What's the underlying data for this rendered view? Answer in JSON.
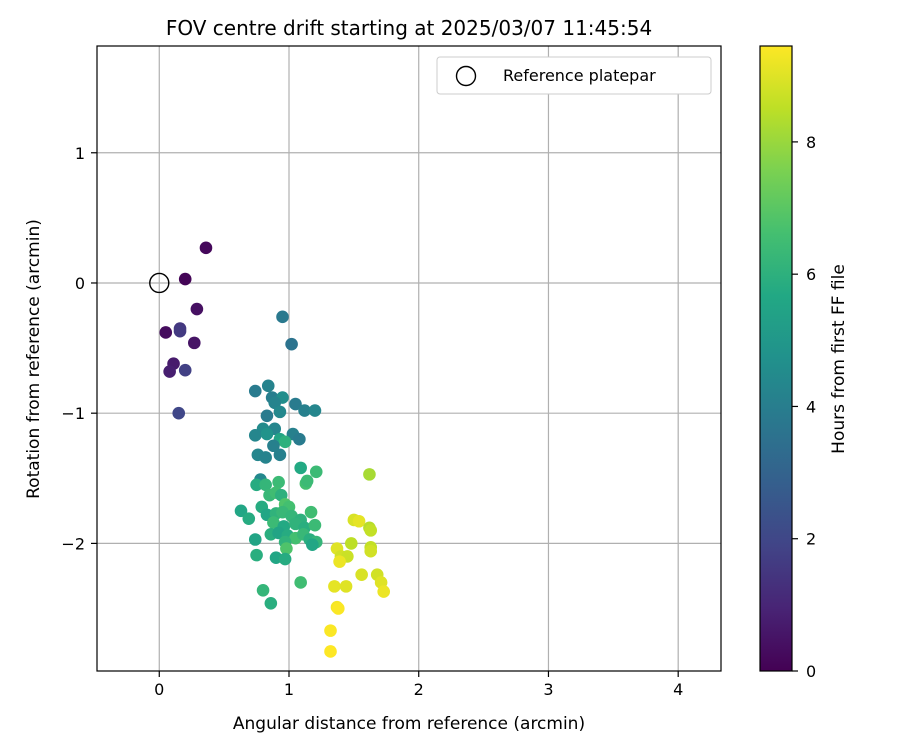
{
  "chart_data": {
    "type": "scatter",
    "title": "FOV centre drift starting at 2025/03/07 11:45:54",
    "xlabel": "Angular distance from reference (arcmin)",
    "ylabel": "Rotation from reference (arcmin)",
    "xlim": [
      -0.48,
      4.33
    ],
    "ylim": [
      -2.98,
      1.82
    ],
    "xticks": [
      0,
      1,
      2,
      3,
      4
    ],
    "yticks": [
      -2,
      -1,
      0,
      1
    ],
    "grid": true,
    "legend": {
      "placement": "upper right",
      "entries": [
        "Reference platepar"
      ]
    },
    "reference_point": {
      "x": 0,
      "y": 0,
      "label": "Reference platepar"
    },
    "colorbar": {
      "label": "Hours from first FF file",
      "range": [
        0,
        9.45
      ],
      "ticks": [
        0,
        2,
        4,
        6,
        8
      ],
      "colormap": "viridis"
    },
    "points": [
      {
        "x": 0.36,
        "y": 0.27,
        "h": 0.2
      },
      {
        "x": 0.2,
        "y": 0.03,
        "h": 0.1
      },
      {
        "x": 0.29,
        "y": -0.2,
        "h": 0.4
      },
      {
        "x": 0.05,
        "y": -0.38,
        "h": 0.3
      },
      {
        "x": 0.16,
        "y": -0.35,
        "h": 1.5
      },
      {
        "x": 0.16,
        "y": -0.37,
        "h": 1.6
      },
      {
        "x": 0.27,
        "y": -0.46,
        "h": 0.5
      },
      {
        "x": 0.11,
        "y": -0.62,
        "h": 0.7
      },
      {
        "x": 0.08,
        "y": -0.68,
        "h": 0.8
      },
      {
        "x": 0.2,
        "y": -0.67,
        "h": 1.8
      },
      {
        "x": 0.15,
        "y": -1.0,
        "h": 2.0
      },
      {
        "x": 0.95,
        "y": -0.26,
        "h": 3.8
      },
      {
        "x": 1.02,
        "y": -0.47,
        "h": 3.6
      },
      {
        "x": 0.74,
        "y": -0.83,
        "h": 3.9
      },
      {
        "x": 0.84,
        "y": -0.79,
        "h": 4.2
      },
      {
        "x": 0.87,
        "y": -0.88,
        "h": 4.0
      },
      {
        "x": 0.95,
        "y": -0.88,
        "h": 4.6
      },
      {
        "x": 0.89,
        "y": -0.92,
        "h": 4.2
      },
      {
        "x": 0.93,
        "y": -0.99,
        "h": 4.4
      },
      {
        "x": 0.83,
        "y": -1.02,
        "h": 3.9
      },
      {
        "x": 1.05,
        "y": -0.93,
        "h": 3.9
      },
      {
        "x": 1.12,
        "y": -0.98,
        "h": 4.1
      },
      {
        "x": 1.2,
        "y": -0.98,
        "h": 4.3
      },
      {
        "x": 0.8,
        "y": -1.12,
        "h": 4.5
      },
      {
        "x": 0.89,
        "y": -1.12,
        "h": 4.3
      },
      {
        "x": 0.74,
        "y": -1.17,
        "h": 4.3
      },
      {
        "x": 0.83,
        "y": -1.16,
        "h": 4.8
      },
      {
        "x": 1.03,
        "y": -1.16,
        "h": 4.1
      },
      {
        "x": 0.93,
        "y": -1.2,
        "h": 5.5
      },
      {
        "x": 0.97,
        "y": -1.22,
        "h": 6.0
      },
      {
        "x": 1.08,
        "y": -1.2,
        "h": 3.9
      },
      {
        "x": 0.88,
        "y": -1.25,
        "h": 4.1
      },
      {
        "x": 0.76,
        "y": -1.32,
        "h": 4.3
      },
      {
        "x": 0.82,
        "y": -1.34,
        "h": 4.2
      },
      {
        "x": 0.93,
        "y": -1.32,
        "h": 4.1
      },
      {
        "x": 1.09,
        "y": -1.42,
        "h": 5.7
      },
      {
        "x": 1.21,
        "y": -1.45,
        "h": 6.4
      },
      {
        "x": 0.78,
        "y": -1.51,
        "h": 4.4
      },
      {
        "x": 0.75,
        "y": -1.55,
        "h": 5.8
      },
      {
        "x": 0.82,
        "y": -1.55,
        "h": 6.2
      },
      {
        "x": 0.92,
        "y": -1.53,
        "h": 6.4
      },
      {
        "x": 1.13,
        "y": -1.54,
        "h": 6.6
      },
      {
        "x": 1.14,
        "y": -1.52,
        "h": 6.4
      },
      {
        "x": 0.85,
        "y": -1.63,
        "h": 6.3
      },
      {
        "x": 0.9,
        "y": -1.61,
        "h": 6.5
      },
      {
        "x": 0.94,
        "y": -1.63,
        "h": 6.0
      },
      {
        "x": 0.97,
        "y": -1.7,
        "h": 6.8
      },
      {
        "x": 1.0,
        "y": -1.72,
        "h": 6.6
      },
      {
        "x": 0.79,
        "y": -1.72,
        "h": 5.8
      },
      {
        "x": 0.83,
        "y": -1.78,
        "h": 5.6
      },
      {
        "x": 0.9,
        "y": -1.77,
        "h": 6.1
      },
      {
        "x": 0.95,
        "y": -1.76,
        "h": 6.3
      },
      {
        "x": 1.02,
        "y": -1.79,
        "h": 6.2
      },
      {
        "x": 1.09,
        "y": -1.82,
        "h": 6.0
      },
      {
        "x": 1.17,
        "y": -1.76,
        "h": 6.5
      },
      {
        "x": 0.63,
        "y": -1.75,
        "h": 5.6
      },
      {
        "x": 0.69,
        "y": -1.81,
        "h": 5.8
      },
      {
        "x": 0.88,
        "y": -1.84,
        "h": 6.4
      },
      {
        "x": 0.96,
        "y": -1.87,
        "h": 5.7
      },
      {
        "x": 1.05,
        "y": -1.85,
        "h": 6.1
      },
      {
        "x": 1.12,
        "y": -1.88,
        "h": 5.9
      },
      {
        "x": 1.2,
        "y": -1.86,
        "h": 6.4
      },
      {
        "x": 0.86,
        "y": -1.93,
        "h": 5.9
      },
      {
        "x": 0.92,
        "y": -1.92,
        "h": 5.5
      },
      {
        "x": 0.99,
        "y": -1.94,
        "h": 5.8
      },
      {
        "x": 1.05,
        "y": -1.96,
        "h": 6.6
      },
      {
        "x": 1.11,
        "y": -1.93,
        "h": 6.3
      },
      {
        "x": 1.16,
        "y": -1.97,
        "h": 5.9
      },
      {
        "x": 1.21,
        "y": -1.99,
        "h": 6.2
      },
      {
        "x": 0.74,
        "y": -1.97,
        "h": 5.5
      },
      {
        "x": 0.97,
        "y": -1.99,
        "h": 6.1
      },
      {
        "x": 1.18,
        "y": -2.01,
        "h": 5.6
      },
      {
        "x": 0.98,
        "y": -2.04,
        "h": 6.8
      },
      {
        "x": 0.75,
        "y": -2.09,
        "h": 5.9
      },
      {
        "x": 0.9,
        "y": -2.11,
        "h": 5.6
      },
      {
        "x": 0.97,
        "y": -2.12,
        "h": 5.8
      },
      {
        "x": 1.09,
        "y": -2.3,
        "h": 6.5
      },
      {
        "x": 0.8,
        "y": -2.36,
        "h": 6.2
      },
      {
        "x": 0.86,
        "y": -2.46,
        "h": 5.9
      },
      {
        "x": 1.62,
        "y": -1.47,
        "h": 8.2
      },
      {
        "x": 1.5,
        "y": -1.82,
        "h": 8.9
      },
      {
        "x": 1.54,
        "y": -1.83,
        "h": 9.1
      },
      {
        "x": 1.62,
        "y": -1.88,
        "h": 8.4
      },
      {
        "x": 1.63,
        "y": -1.9,
        "h": 8.6
      },
      {
        "x": 1.48,
        "y": -2.0,
        "h": 8.5
      },
      {
        "x": 1.37,
        "y": -2.04,
        "h": 9.0
      },
      {
        "x": 1.4,
        "y": -2.1,
        "h": 8.8
      },
      {
        "x": 1.45,
        "y": -2.1,
        "h": 8.7
      },
      {
        "x": 1.63,
        "y": -2.03,
        "h": 8.6
      },
      {
        "x": 1.63,
        "y": -2.06,
        "h": 8.8
      },
      {
        "x": 1.39,
        "y": -2.14,
        "h": 9.2
      },
      {
        "x": 1.56,
        "y": -2.24,
        "h": 8.9
      },
      {
        "x": 1.68,
        "y": -2.24,
        "h": 8.8
      },
      {
        "x": 1.71,
        "y": -2.3,
        "h": 9.0
      },
      {
        "x": 1.73,
        "y": -2.37,
        "h": 9.2
      },
      {
        "x": 1.35,
        "y": -2.33,
        "h": 9.1
      },
      {
        "x": 1.44,
        "y": -2.33,
        "h": 9.0
      },
      {
        "x": 1.37,
        "y": -2.49,
        "h": 9.3
      },
      {
        "x": 1.38,
        "y": -2.5,
        "h": 9.4
      },
      {
        "x": 1.32,
        "y": -2.67,
        "h": 9.4
      },
      {
        "x": 1.32,
        "y": -2.83,
        "h": 9.5
      }
    ]
  }
}
